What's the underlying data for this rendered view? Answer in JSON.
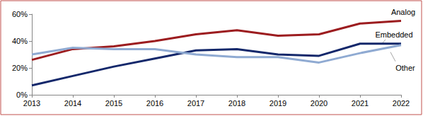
{
  "chart_data": {
    "type": "line",
    "categories": [
      "2013",
      "2014",
      "2015",
      "2016",
      "2017",
      "2018",
      "2019",
      "2020",
      "2021",
      "2022"
    ],
    "series": [
      {
        "name": "Analog",
        "color": "#9c1c1f",
        "values": [
          26,
          34,
          36,
          40,
          45,
          48,
          44,
          45,
          53,
          55
        ]
      },
      {
        "name": "Embedded",
        "color": "#14286b",
        "values": [
          7,
          14,
          21,
          27,
          33,
          34,
          30,
          29,
          38,
          38
        ]
      },
      {
        "name": "Other",
        "color": "#8faad2",
        "values": [
          30,
          35,
          34,
          34,
          30,
          28,
          28,
          24,
          31,
          37
        ]
      }
    ],
    "ylim": [
      0,
      60
    ],
    "yticks": [
      {
        "value": 0,
        "label": "0%"
      },
      {
        "value": 20,
        "label": "20%"
      },
      {
        "value": 40,
        "label": "40%"
      },
      {
        "value": 60,
        "label": "60%"
      }
    ],
    "grid": false
  }
}
